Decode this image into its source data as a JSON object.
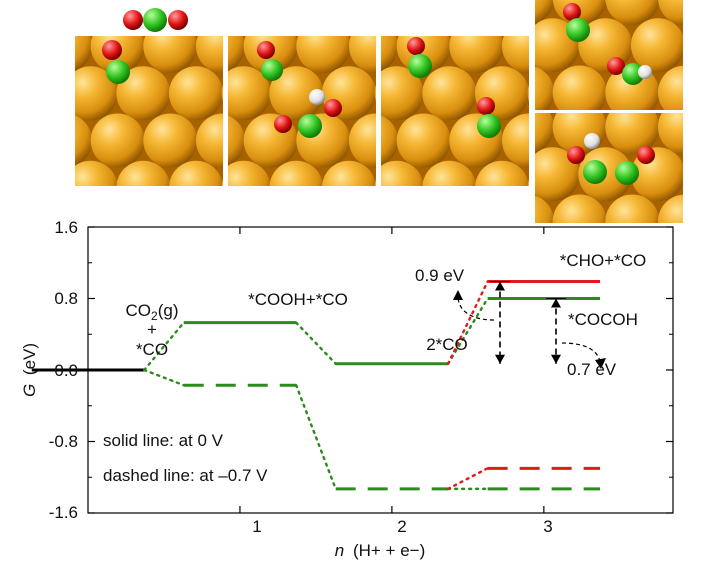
{
  "chart_data": {
    "type": "line",
    "xlabel_main": "n",
    "xlabel_paren": "(H+ + e−)",
    "ylabel_main": "G",
    "ylabel_unit": "(eV)",
    "xlim": [
      0,
      3.85
    ],
    "ylim": [
      -1.6,
      1.6
    ],
    "xticks": [
      "1",
      "2",
      "3"
    ],
    "yticks": [
      "1.6",
      "0.8",
      "0.0",
      "-0.8",
      "-1.6"
    ],
    "colors": {
      "green": "#2c8a1f",
      "red": "#e11b1b",
      "black": "#000000"
    },
    "series": [
      {
        "line": "solid",
        "color": "black",
        "values": [
          [
            0.0,
            0.0
          ]
        ]
      },
      {
        "line": "solid",
        "color": "green",
        "values": [
          [
            1,
            0.53
          ],
          [
            2,
            0.07
          ],
          [
            3,
            0.8
          ]
        ]
      },
      {
        "line": "solid",
        "color": "red",
        "values": [
          [
            3,
            0.99
          ]
        ]
      },
      {
        "line": "dashed",
        "color": "green",
        "values": [
          [
            1,
            -0.17
          ],
          [
            2,
            -1.33
          ],
          [
            3,
            -1.33
          ]
        ]
      },
      {
        "line": "dashed",
        "color": "red",
        "values": [
          [
            3,
            -1.1
          ]
        ]
      }
    ],
    "state_labels": {
      "co2_line1": "CO2(g)",
      "co2_plus": "+",
      "co2_line3": "*CO",
      "cooh": "*COOH+*CO",
      "two_co": "2*CO",
      "cho": "*CHO+*CO",
      "cocoh": "*COCOH"
    },
    "annotations": {
      "barrier_cho": "0.9 eV",
      "barrier_cocoh": "0.7 eV",
      "legend_solid": "solid line: at 0 V",
      "legend_dashed": "dashed line: at –0.7 V"
    }
  },
  "images": {
    "description_panels": [
      "co2-on-surface",
      "cooh-formation",
      "two-co",
      "cho-and-co",
      "cocoh"
    ]
  }
}
